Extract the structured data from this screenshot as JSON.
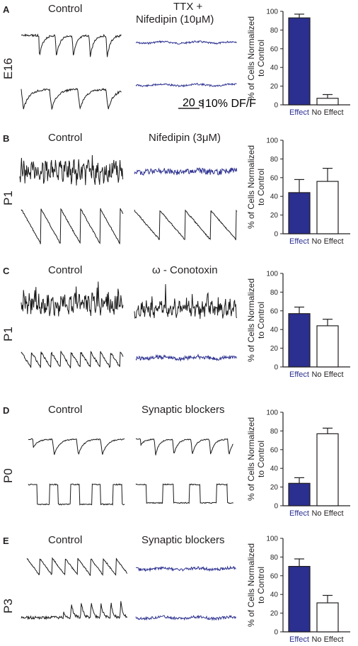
{
  "colors": {
    "effect_bar": "#2b2f8f",
    "treated_trace": "#2b2f8f",
    "control_trace": "#1a1a1a",
    "axis": "#231f20"
  },
  "panels": [
    {
      "letter": "A",
      "stage": "E16",
      "control_title": "Control",
      "treatment_title_1": "TTX +",
      "treatment_title_2": "Nifedipin (10μM)"
    },
    {
      "letter": "B",
      "stage": "P1",
      "control_title": "Control",
      "treatment_title_1": "",
      "treatment_title_2": "Nifedipin (3μM)"
    },
    {
      "letter": "C",
      "stage": "P1",
      "control_title": "Control",
      "treatment_title_1": "",
      "treatment_title_2": "ω - Conotoxin"
    },
    {
      "letter": "D",
      "stage": "P0",
      "control_title": "Control",
      "treatment_title_1": "",
      "treatment_title_2": "Synaptic blockers"
    },
    {
      "letter": "E",
      "stage": "P3",
      "control_title": "Control",
      "treatment_title_1": "",
      "treatment_title_2": "Synaptic blockers"
    }
  ],
  "scale_bar": {
    "time": "20 s",
    "amplitude": "10% DF/F"
  },
  "chart_data": [
    {
      "type": "bar",
      "categories": [
        "Effect",
        "No Effect"
      ],
      "values": [
        93,
        7
      ],
      "errors": [
        4,
        4
      ],
      "ylabel": "% of Cells Normalized to Control",
      "ylim": [
        0,
        100
      ],
      "yticks": [
        0,
        20,
        40,
        60,
        80,
        100
      ]
    },
    {
      "type": "bar",
      "categories": [
        "Effect",
        "No Effect"
      ],
      "values": [
        44,
        56
      ],
      "errors": [
        14,
        14
      ],
      "ylabel": "% of Cells Normalized to Control",
      "ylim": [
        0,
        100
      ],
      "yticks": [
        0,
        20,
        40,
        60,
        80,
        100
      ]
    },
    {
      "type": "bar",
      "categories": [
        "Effect",
        "No Effect"
      ],
      "values": [
        57,
        44
      ],
      "errors": [
        7,
        7
      ],
      "ylabel": "% of Cells Normalized to Control",
      "ylim": [
        0,
        100
      ],
      "yticks": [
        0,
        20,
        40,
        60,
        80,
        100
      ]
    },
    {
      "type": "bar",
      "categories": [
        "Effect",
        "No Effect"
      ],
      "values": [
        24,
        77
      ],
      "errors": [
        6,
        6
      ],
      "ylabel": "% of Cells Normalized to Control",
      "ylim": [
        0,
        100
      ],
      "yticks": [
        0,
        20,
        40,
        60,
        80,
        100
      ]
    },
    {
      "type": "bar",
      "categories": [
        "Effect",
        "No Effect"
      ],
      "values": [
        70,
        31
      ],
      "errors": [
        8,
        8
      ],
      "ylabel": "% of Cells Normalized to Control",
      "ylim": [
        0,
        100
      ],
      "yticks": [
        0,
        20,
        40,
        60,
        80,
        100
      ]
    }
  ]
}
